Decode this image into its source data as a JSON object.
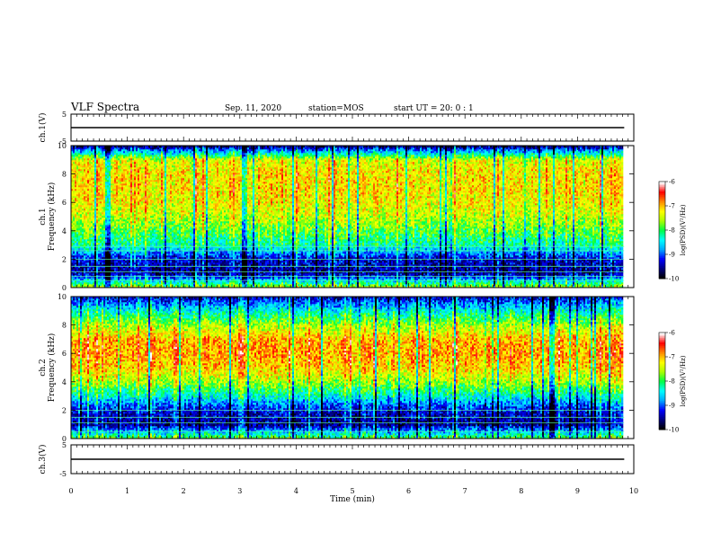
{
  "header": {
    "title": "VLF Spectra",
    "date": "Sep. 11, 2020",
    "station": "station=MOS",
    "start": "start UT =  20: 0  : 1"
  },
  "chart_data": [
    {
      "type": "line",
      "panel": "ch1-waveform",
      "ylabel": "ch.1(V)",
      "ylim": [
        -5,
        5
      ],
      "yticks": [
        "5",
        "-5"
      ],
      "x": [
        0,
        9.83
      ],
      "y": [
        0,
        0
      ],
      "color": "#000000"
    },
    {
      "type": "heatmap",
      "panel": "ch1-spectrogram",
      "ylabel": "ch.1 Frequency (kHz)",
      "ylim": [
        0,
        10
      ],
      "yticks": [
        "0",
        "2",
        "4",
        "6",
        "8",
        "10"
      ],
      "xlim": [
        0,
        10
      ],
      "data_xmax": 9.83,
      "colorbar": {
        "label": "log(PSD)(V²/Hz)",
        "range": [
          -10,
          -6
        ],
        "ticks": [
          "-6",
          "-7",
          "-8",
          "-9",
          "-10"
        ]
      },
      "profile_freq_khz": [
        0,
        1,
        2,
        3,
        4,
        5,
        6,
        7,
        8,
        9,
        10
      ],
      "profile_log_psd": [
        -7.6,
        -9.6,
        -9.4,
        -8.3,
        -7.9,
        -7.5,
        -7.3,
        -7.2,
        -7.2,
        -7.4,
        -9.7
      ],
      "tones_khz": [
        0.5,
        0.8,
        1.1,
        1.5,
        2.0,
        2.6,
        2.9
      ]
    },
    {
      "type": "heatmap",
      "panel": "ch2-spectrogram",
      "ylabel": "ch.2 Frequency (kHz)",
      "ylim": [
        0,
        10
      ],
      "yticks": [
        "0",
        "2",
        "4",
        "6",
        "8",
        "10"
      ],
      "xlim": [
        0,
        10
      ],
      "data_xmax": 9.83,
      "colorbar": {
        "label": "log(PSD)(V²/Hz)",
        "range": [
          -10,
          -6
        ],
        "ticks": [
          "-6",
          "-7",
          "-8",
          "-9",
          "-10"
        ]
      },
      "profile_freq_khz": [
        0,
        1,
        2,
        3,
        4,
        5,
        6,
        7,
        8,
        9,
        10
      ],
      "profile_log_psd": [
        -7.8,
        -9.6,
        -9.3,
        -8.4,
        -7.6,
        -7.1,
        -6.9,
        -7.0,
        -7.6,
        -8.4,
        -9.4
      ],
      "tones_khz": [
        0.5,
        1.1,
        1.5,
        2.0
      ]
    },
    {
      "type": "line",
      "panel": "ch3-waveform",
      "ylabel": "ch.3(V)",
      "ylim": [
        -5,
        5
      ],
      "yticks": [
        "5",
        "-5"
      ],
      "x": [
        0,
        9.83
      ],
      "y": [
        0,
        0
      ],
      "color": "#000000"
    }
  ],
  "xaxis": {
    "label": "Time (min)",
    "range": [
      0,
      10
    ],
    "ticks": [
      "0",
      "1",
      "2",
      "3",
      "4",
      "5",
      "6",
      "7",
      "8",
      "9",
      "10"
    ]
  },
  "colormap": [
    "#000000",
    "#000080",
    "#0000ff",
    "#00aaff",
    "#00ffff",
    "#00ff44",
    "#aaff00",
    "#ffff00",
    "#ff8800",
    "#ff0000",
    "#ffffff"
  ]
}
